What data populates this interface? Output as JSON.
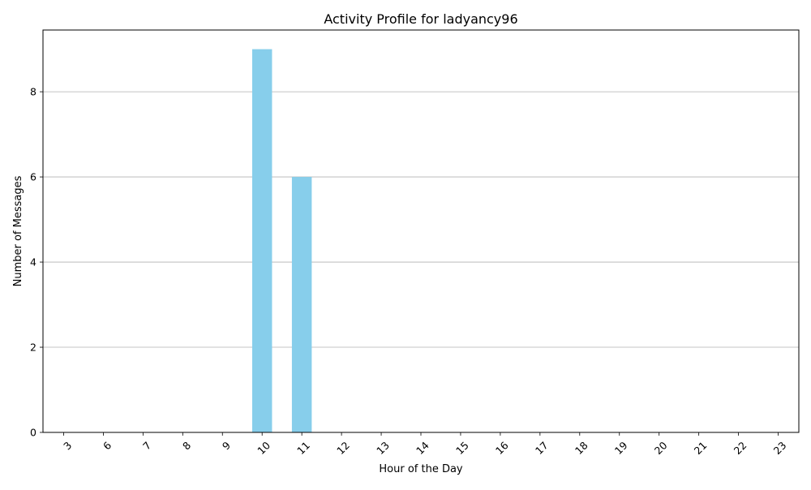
{
  "chart_data": {
    "type": "bar",
    "title": "Activity Profile for ladyancy96",
    "xlabel": "Hour of the Day",
    "ylabel": "Number of Messages",
    "categories": [
      "3",
      "6",
      "7",
      "8",
      "9",
      "10",
      "11",
      "12",
      "13",
      "14",
      "15",
      "16",
      "17",
      "18",
      "19",
      "20",
      "21",
      "22",
      "23"
    ],
    "values": [
      0,
      0,
      0,
      0,
      0,
      9,
      6,
      0,
      0,
      0,
      0,
      0,
      0,
      0,
      0,
      0,
      0,
      0,
      0
    ],
    "ylim": [
      0,
      9.45
    ],
    "yticks": [
      0,
      2,
      4,
      6,
      8
    ],
    "grid": {
      "y": true,
      "x": false
    },
    "bar_color": "#87CEEB",
    "grid_color": "#b0b0b0",
    "xtick_rotation": 45
  }
}
